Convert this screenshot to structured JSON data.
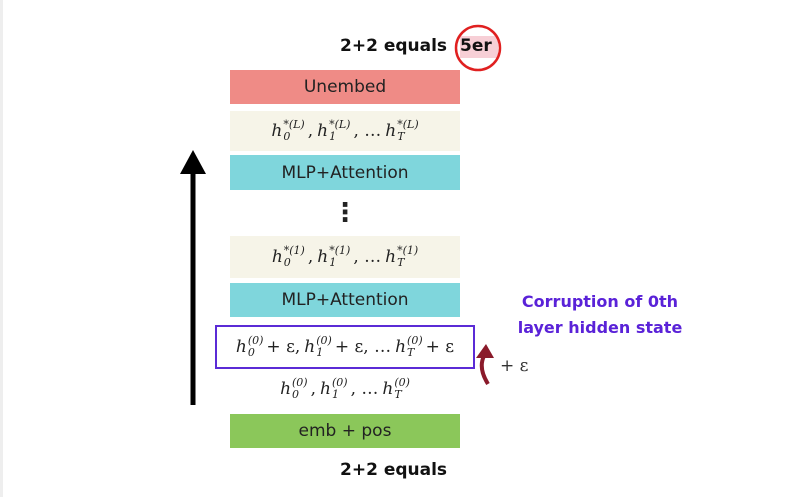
{
  "top_caption": {
    "prefix": "2+2 equals",
    "prediction": "5er"
  },
  "blocks": {
    "unembed": "Unembed",
    "states_L": [
      {
        "base": "h",
        "sub": "0",
        "sup": "*(L)",
        "tail": ","
      },
      {
        "base": "h",
        "sub": "1",
        "sup": "*(L)",
        "tail": ", …"
      },
      {
        "base": "h",
        "sub": "T",
        "sup": "*(L)",
        "tail": ""
      }
    ],
    "mlp_top": "MLP+Attention",
    "ellipsis": "⋮",
    "states_1": [
      {
        "base": "h",
        "sub": "0",
        "sup": "*(1)",
        "tail": ","
      },
      {
        "base": "h",
        "sub": "1",
        "sup": "*(1)",
        "tail": ", …"
      },
      {
        "base": "h",
        "sub": "T",
        "sup": "*(1)",
        "tail": ""
      }
    ],
    "mlp_bottom": "MLP+Attention",
    "states_corrupted": [
      {
        "base": "h",
        "sub": "0",
        "sup": "(0)",
        "tail": "+ ε,"
      },
      {
        "base": "h",
        "sub": "1",
        "sup": "(0)",
        "tail": "+ ε, …"
      },
      {
        "base": "h",
        "sub": "T",
        "sup": "(0)",
        "tail": "+ ε"
      }
    ],
    "states_0": [
      {
        "base": "h",
        "sub": "0",
        "sup": "(0)",
        "tail": ","
      },
      {
        "base": "h",
        "sub": "1",
        "sup": "(0)",
        "tail": ", …"
      },
      {
        "base": "h",
        "sub": "T",
        "sup": "(0)",
        "tail": ""
      }
    ],
    "embed": "emb + pos"
  },
  "bottom_caption": "2+2 equals",
  "annotation": {
    "line1": "Corruption of 0th",
    "line2": "layer hidden state",
    "noise": "+ ε"
  }
}
